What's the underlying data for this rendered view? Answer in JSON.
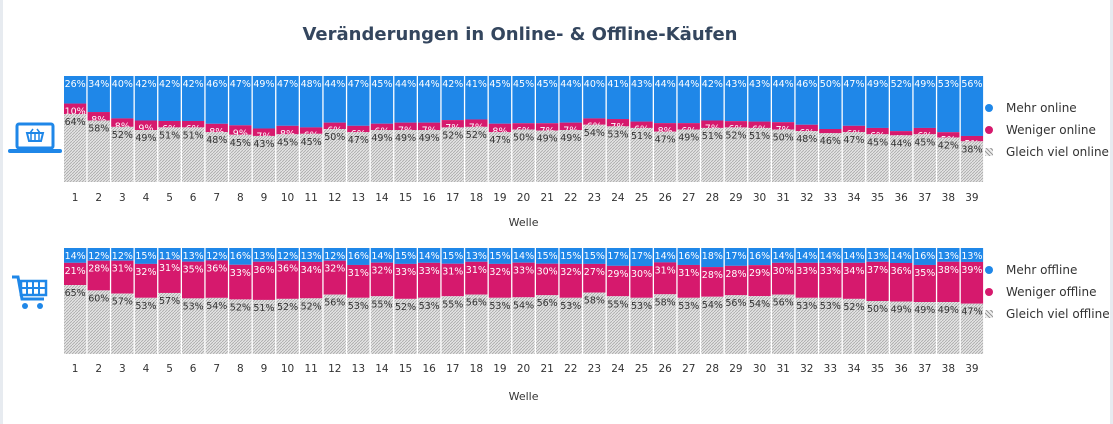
{
  "title": "Veränderungen in Online- & Offline-Käufen",
  "colors": {
    "more": "#1f87e8",
    "less": "#d6196d",
    "same_bg": "#e4e4e4",
    "same_pattern": "#a8a8a8",
    "icon": "#1f87e8"
  },
  "icons": {
    "online": "laptop-basket-icon",
    "offline": "shopping-cart-icon"
  },
  "chart_data": [
    {
      "type": "bar",
      "stacked": true,
      "categories": [
        "1",
        "2",
        "3",
        "4",
        "5",
        "6",
        "7",
        "8",
        "9",
        "10",
        "11",
        "12",
        "13",
        "14",
        "15",
        "16",
        "17",
        "18",
        "19",
        "20",
        "21",
        "22",
        "23",
        "24",
        "25",
        "26",
        "27",
        "28",
        "29",
        "30",
        "31",
        "32",
        "33",
        "34",
        "35",
        "36",
        "37",
        "38",
        "39"
      ],
      "xlabel": "Welle",
      "series": [
        {
          "name": "Mehr online",
          "values": [
            26,
            34,
            40,
            42,
            42,
            42,
            46,
            47,
            49,
            47,
            48,
            44,
            47,
            45,
            44,
            44,
            42,
            41,
            45,
            45,
            45,
            44,
            40,
            41,
            43,
            44,
            44,
            42,
            43,
            43,
            44,
            46,
            50,
            47,
            49,
            52,
            49,
            53,
            56
          ]
        },
        {
          "name": "Weniger online",
          "values": [
            10,
            8,
            8,
            9,
            6,
            6,
            8,
            9,
            7,
            8,
            6,
            6,
            6,
            6,
            7,
            7,
            7,
            7,
            8,
            6,
            7,
            7,
            6,
            7,
            6,
            8,
            6,
            7,
            6,
            6,
            7,
            6,
            4,
            6,
            6,
            4,
            6,
            5,
            5
          ]
        },
        {
          "name": "Gleich viel online",
          "values": [
            64,
            58,
            52,
            49,
            51,
            51,
            48,
            45,
            43,
            45,
            45,
            50,
            47,
            49,
            49,
            49,
            52,
            52,
            47,
            50,
            49,
            49,
            54,
            53,
            51,
            47,
            49,
            51,
            52,
            51,
            50,
            48,
            46,
            47,
            45,
            44,
            45,
            42,
            38
          ]
        }
      ],
      "legend": "right"
    },
    {
      "type": "bar",
      "stacked": true,
      "categories": [
        "1",
        "2",
        "3",
        "4",
        "5",
        "6",
        "7",
        "8",
        "9",
        "10",
        "11",
        "12",
        "13",
        "14",
        "15",
        "16",
        "17",
        "18",
        "19",
        "20",
        "21",
        "22",
        "23",
        "24",
        "25",
        "26",
        "27",
        "28",
        "29",
        "30",
        "31",
        "32",
        "33",
        "34",
        "35",
        "36",
        "37",
        "38",
        "39"
      ],
      "xlabel": "Welle",
      "series": [
        {
          "name": "Mehr offline",
          "values": [
            14,
            12,
            12,
            15,
            11,
            13,
            12,
            16,
            13,
            12,
            13,
            12,
            16,
            14,
            15,
            14,
            15,
            13,
            15,
            14,
            15,
            15,
            15,
            17,
            17,
            14,
            16,
            18,
            17,
            16,
            14,
            14,
            14,
            14,
            13,
            14,
            16,
            13,
            13
          ]
        },
        {
          "name": "Weniger offline",
          "values": [
            21,
            28,
            31,
            32,
            31,
            35,
            36,
            33,
            36,
            36,
            34,
            32,
            31,
            32,
            33,
            33,
            31,
            31,
            32,
            33,
            30,
            32,
            27,
            29,
            30,
            31,
            31,
            28,
            28,
            29,
            30,
            33,
            33,
            34,
            37,
            36,
            35,
            38,
            39
          ]
        },
        {
          "name": "Gleich viel offline",
          "values": [
            65,
            60,
            57,
            53,
            57,
            53,
            54,
            52,
            51,
            52,
            52,
            56,
            53,
            55,
            52,
            53,
            55,
            56,
            53,
            54,
            56,
            53,
            58,
            55,
            53,
            58,
            53,
            54,
            56,
            54,
            56,
            53,
            53,
            52,
            50,
            49,
            49,
            49,
            47
          ]
        }
      ],
      "legend": "right"
    }
  ]
}
